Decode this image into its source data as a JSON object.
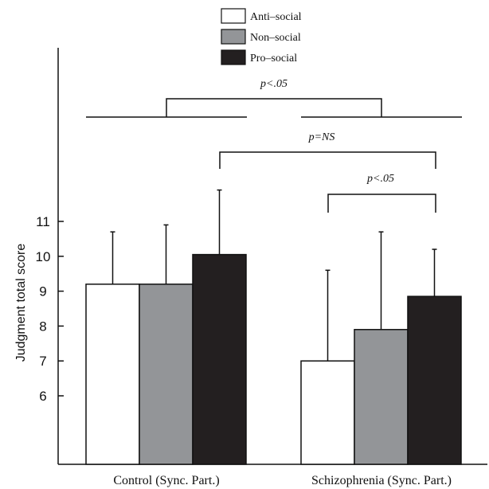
{
  "chart_data": {
    "type": "bar",
    "ylabel": "Judgment total score",
    "xlabel": "",
    "categories": [
      "Control (Sync. Part.)",
      "Schizophrenia (Sync. Part.)"
    ],
    "yticks": [
      6,
      7,
      8,
      9,
      10,
      11
    ],
    "ylim": [
      3.5,
      15
    ],
    "grid": false,
    "legend_position": "top-center",
    "series": [
      {
        "name": "Anti–social",
        "color": "#ffffff",
        "values": [
          9.2,
          7.0
        ],
        "error_upper": [
          10.7,
          9.6
        ]
      },
      {
        "name": "Non–social",
        "color": "#939598",
        "values": [
          9.2,
          7.9
        ],
        "error_upper": [
          10.9,
          10.7
        ]
      },
      {
        "name": "Pro–social",
        "color": "#231f20",
        "values": [
          10.05,
          8.85
        ],
        "error_upper": [
          11.9,
          10.2
        ]
      }
    ],
    "annotations": [
      {
        "text": "p<.05",
        "between": "Control (Sync. Part.) vs Schizophrenia (Sync. Part.)"
      },
      {
        "text": "p=NS",
        "between": "Control Pro–social vs Schizophrenia Pro–social"
      },
      {
        "text": "p<.05",
        "between": "Schizophrenia Anti–social vs Schizophrenia Pro–social"
      }
    ]
  }
}
